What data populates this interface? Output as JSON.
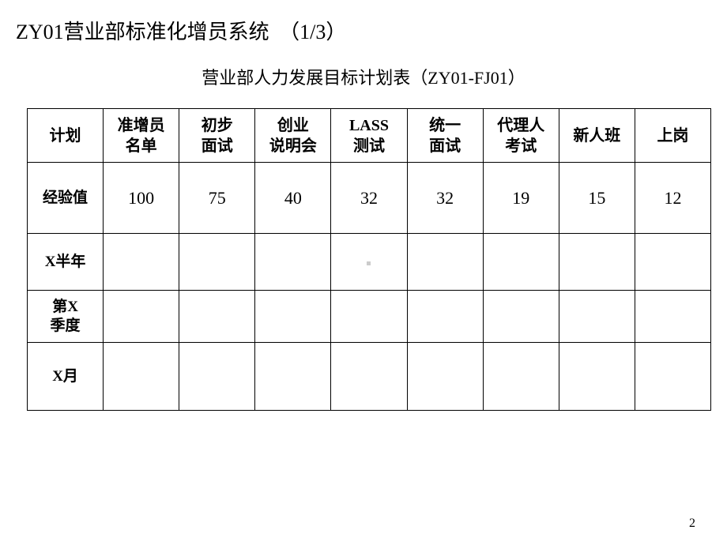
{
  "colors": {
    "background": "#ffffff",
    "text": "#000000",
    "border": "#000000"
  },
  "title": {
    "main": "ZY01营业部标准化增员系统",
    "counter": "（1/3）"
  },
  "tableTitle": "营业部人力发展目标计划表（ZY01-FJ01）",
  "table": {
    "columns": [
      {
        "lines": [
          "计划"
        ]
      },
      {
        "lines": [
          "准增员",
          "名单"
        ]
      },
      {
        "lines": [
          "初步",
          "面试"
        ]
      },
      {
        "lines": [
          "创业",
          "说明会"
        ]
      },
      {
        "lines": [
          "LASS",
          "测试"
        ]
      },
      {
        "lines": [
          "统一",
          "面试"
        ]
      },
      {
        "lines": [
          "代理人",
          "考试"
        ]
      },
      {
        "lines": [
          "新人班"
        ]
      },
      {
        "lines": [
          "上岗"
        ]
      }
    ],
    "rows": [
      {
        "key": "exp",
        "labelLines": [
          "经验值"
        ],
        "cells": [
          "100",
          "75",
          "40",
          "32",
          "32",
          "19",
          "15",
          "12"
        ]
      },
      {
        "key": "half",
        "labelLines": [
          "X半年"
        ],
        "cells": [
          "",
          "",
          "",
          "",
          "",
          "",
          "",
          ""
        ]
      },
      {
        "key": "q",
        "labelLines": [
          "第X",
          "季度"
        ],
        "cells": [
          "",
          "",
          "",
          "",
          "",
          "",
          "",
          ""
        ]
      },
      {
        "key": "m",
        "labelLines": [
          "X月"
        ],
        "cells": [
          "",
          "",
          "",
          "",
          "",
          "",
          "",
          ""
        ]
      }
    ]
  },
  "marker": {
    "row": 1,
    "col": 3
  },
  "pageNumber": "2"
}
